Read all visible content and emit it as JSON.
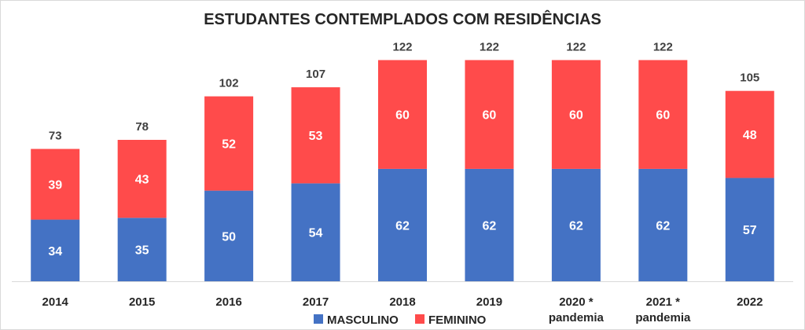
{
  "chart_data": {
    "type": "bar",
    "stacked": true,
    "title": "ESTUDANTES CONTEMPLADOS COM RESIDÊNCIAS",
    "categories": [
      [
        "2014"
      ],
      [
        "2015"
      ],
      [
        "2016"
      ],
      [
        "2017"
      ],
      [
        "2018"
      ],
      [
        "2019"
      ],
      [
        "2020 *",
        "pandemia"
      ],
      [
        "2021 *",
        "pandemia"
      ],
      [
        "2022"
      ]
    ],
    "series": [
      {
        "name": "MASCULINO",
        "color": "#4472c4",
        "values": [
          34,
          35,
          50,
          54,
          62,
          62,
          62,
          62,
          57
        ]
      },
      {
        "name": "FEMININO",
        "color": "#ff4b4b",
        "values": [
          39,
          43,
          52,
          53,
          60,
          60,
          60,
          60,
          48
        ]
      }
    ],
    "totals": [
      73,
      78,
      102,
      107,
      122,
      122,
      122,
      122,
      105
    ],
    "ylim": [
      0,
      130
    ],
    "grid": false,
    "legend_position": "bottom"
  }
}
